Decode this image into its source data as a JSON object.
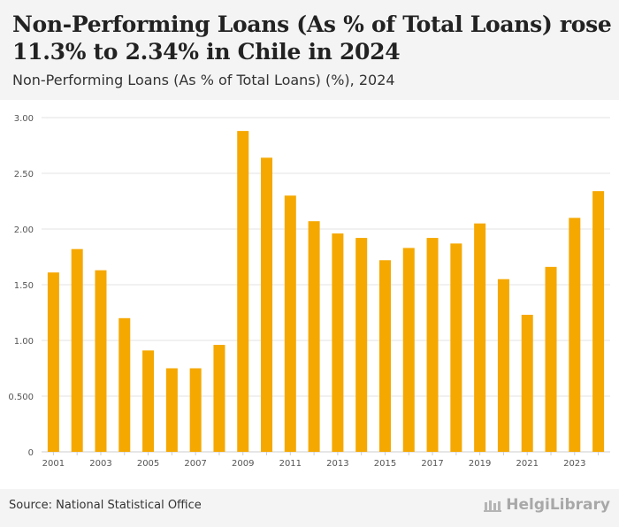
{
  "header": {
    "title": "Non-Performing Loans (As % of Total Loans) rose 11.3% to 2.34% in Chile in 2024",
    "subtitle": "Non-Performing Loans (As % of Total Loans) (%), 2024"
  },
  "footer": {
    "source": "Source: National Statistical Office",
    "brand": "HelgiLibrary"
  },
  "colors": {
    "bar": "#f5a800",
    "grid": "#e3e3e3",
    "tick_text": "#555555"
  },
  "chart_data": {
    "type": "bar",
    "title": "Non-Performing Loans (As % of Total Loans) rose 11.3% to 2.34% in Chile in 2024",
    "xlabel": "",
    "ylabel": "",
    "categories": [
      "2001",
      "2002",
      "2003",
      "2004",
      "2005",
      "2006",
      "2007",
      "2008",
      "2009",
      "2010",
      "2011",
      "2012",
      "2013",
      "2014",
      "2015",
      "2016",
      "2017",
      "2018",
      "2019",
      "2020",
      "2021",
      "2022",
      "2023",
      "2024"
    ],
    "x_tick_labels": [
      "2001",
      "",
      "2003",
      "",
      "2005",
      "",
      "2007",
      "",
      "2009",
      "",
      "2011",
      "",
      "2013",
      "",
      "2015",
      "",
      "2017",
      "",
      "2019",
      "",
      "2021",
      "",
      "2023",
      ""
    ],
    "values": [
      1.61,
      1.82,
      1.63,
      1.2,
      0.91,
      0.75,
      0.75,
      0.96,
      2.88,
      2.64,
      2.3,
      2.07,
      1.96,
      1.92,
      1.72,
      1.83,
      1.92,
      1.87,
      2.05,
      1.55,
      1.23,
      1.66,
      2.1,
      2.34
    ],
    "ylim": [
      0,
      3.0
    ],
    "y_ticks": [
      0,
      0.5,
      1.0,
      1.5,
      2.0,
      2.5,
      3.0
    ],
    "y_tick_labels": [
      "0",
      "0.500",
      "1.00",
      "1.50",
      "2.00",
      "2.50",
      "3.00"
    ],
    "grid": true
  }
}
